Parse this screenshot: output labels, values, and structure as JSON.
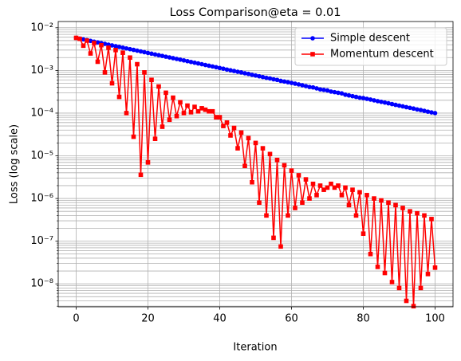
{
  "chart_data": {
    "type": "line",
    "title": "Loss Comparison@eta = 0.01",
    "xlabel": "Iteration",
    "ylabel": "Loss (log scale)",
    "yscale": "log",
    "grid": true,
    "legend": "upper right",
    "xlim": [
      -5,
      105
    ],
    "xticks": [
      0,
      20,
      40,
      60,
      80,
      100
    ],
    "ylim": [
      2.9e-09,
      0.014
    ],
    "yticks": [
      {
        "value": 1e-08,
        "label": "10⁻⁸"
      },
      {
        "value": 1e-07,
        "label": "10⁻⁷"
      },
      {
        "value": 1e-06,
        "label": "10⁻⁶"
      },
      {
        "value": 1e-05,
        "label": "10⁻⁵"
      },
      {
        "value": 0.0001,
        "label": "10⁻⁴"
      },
      {
        "value": 0.001,
        "label": "10⁻³"
      },
      {
        "value": 0.01,
        "label": "10⁻²"
      }
    ],
    "yminorticks": [
      3e-09,
      4e-09,
      5e-09,
      6e-09,
      7e-09,
      8e-09,
      9e-09,
      2e-08,
      3e-08,
      4e-08,
      5e-08,
      6e-08,
      7e-08,
      8e-08,
      9e-08,
      2e-07,
      3e-07,
      4e-07,
      5e-07,
      6e-07,
      7e-07,
      8e-07,
      9e-07,
      2e-06,
      3e-06,
      4e-06,
      5e-06,
      6e-06,
      7e-06,
      8e-06,
      9e-06,
      2e-05,
      3e-05,
      4e-05,
      5e-05,
      6e-05,
      7e-05,
      8e-05,
      9e-05,
      0.0002,
      0.0003,
      0.0004,
      0.0005,
      0.0006,
      0.0007,
      0.0008,
      0.0009,
      0.002,
      0.003,
      0.004,
      0.005,
      0.006,
      0.007,
      0.008,
      0.009
    ],
    "x": [
      0,
      1,
      2,
      3,
      4,
      5,
      6,
      7,
      8,
      9,
      10,
      11,
      12,
      13,
      14,
      15,
      16,
      17,
      18,
      19,
      20,
      21,
      22,
      23,
      24,
      25,
      26,
      27,
      28,
      29,
      30,
      31,
      32,
      33,
      34,
      35,
      36,
      37,
      38,
      39,
      40,
      41,
      42,
      43,
      44,
      45,
      46,
      47,
      48,
      49,
      50,
      51,
      52,
      53,
      54,
      55,
      56,
      57,
      58,
      59,
      60,
      61,
      62,
      63,
      64,
      65,
      66,
      67,
      68,
      69,
      70,
      71,
      72,
      73,
      74,
      75,
      76,
      77,
      78,
      79,
      80,
      81,
      82,
      83,
      84,
      85,
      86,
      87,
      88,
      89,
      90,
      91,
      92,
      93,
      94,
      95,
      96,
      97,
      98,
      99,
      100
    ],
    "series": [
      {
        "name": "Simple descent",
        "color": "#0000ff",
        "marker": "circle",
        "values": [
          0.0058,
          0.00557,
          0.00535,
          0.00513,
          0.00493,
          0.00473,
          0.00455,
          0.00437,
          0.00419,
          0.00402,
          0.00386,
          0.00371,
          0.00356,
          0.00342,
          0.00328,
          0.00315,
          0.00303,
          0.00291,
          0.00279,
          0.00268,
          0.00257,
          0.00247,
          0.00237,
          0.00228,
          0.00219,
          0.0021,
          0.00202,
          0.00194,
          0.00186,
          0.00179,
          0.00172,
          0.00165,
          0.00158,
          0.00152,
          0.00146,
          0.0014,
          0.00134,
          0.00129,
          0.00124,
          0.00119,
          0.00114,
          0.0011,
          0.00105,
          0.00101,
          0.00097,
          0.00093,
          0.0009,
          0.00086,
          0.00083,
          0.00079,
          0.00076,
          0.00073,
          0.0007,
          0.00067,
          0.00065,
          0.00062,
          0.0006,
          0.00057,
          0.00055,
          0.00053,
          0.00051,
          0.00049,
          0.00047,
          0.00045,
          0.00043,
          0.00041,
          0.0004,
          0.00038,
          0.00036,
          0.00035,
          0.00034,
          0.00032,
          0.00031,
          0.0003,
          0.00029,
          0.00027,
          0.00026,
          0.00025,
          0.00024,
          0.00023,
          0.000225,
          0.000216,
          0.000208,
          0.000199,
          0.000191,
          0.000184,
          0.000177,
          0.00017,
          0.000163,
          0.000156,
          0.00015,
          0.000144,
          0.000138,
          0.000133,
          0.000128,
          0.000122,
          0.000118,
          0.000113,
          0.000108,
          0.000104,
          0.0001
        ]
      },
      {
        "name": "Momentum descent",
        "color": "#ff0000",
        "marker": "square",
        "values": [
          0.0058,
          0.0055,
          0.0038,
          0.005,
          0.0025,
          0.0044,
          0.0016,
          0.0039,
          0.0009,
          0.0034,
          0.0005,
          0.003,
          0.00024,
          0.0026,
          0.0001,
          0.002,
          2.8e-05,
          0.0014,
          3.6e-06,
          0.0009,
          7e-06,
          0.0006,
          2.5e-05,
          0.00042,
          4.8e-05,
          0.0003,
          7e-05,
          0.00023,
          8.5e-05,
          0.00018,
          0.0001,
          0.00015,
          0.000105,
          0.00014,
          0.00011,
          0.00013,
          0.00012,
          0.00011,
          0.00011,
          8e-05,
          8e-05,
          5e-05,
          6e-05,
          3e-05,
          4.5e-05,
          1.5e-05,
          3.5e-05,
          5.8e-06,
          2.6e-05,
          2.4e-06,
          2e-05,
          8e-07,
          1.5e-05,
          4e-07,
          1.1e-05,
          1.2e-07,
          8e-06,
          7.5e-08,
          6e-06,
          4e-07,
          4.5e-06,
          6e-07,
          3.5e-06,
          8e-07,
          2.8e-06,
          1e-06,
          2.2e-06,
          1.2e-06,
          2e-06,
          1.6e-06,
          1.8e-06,
          2.2e-06,
          1.8e-06,
          2e-06,
          1.2e-06,
          1.8e-06,
          7e-07,
          1.6e-06,
          4e-07,
          1.4e-06,
          1.5e-07,
          1.2e-06,
          5e-08,
          1e-06,
          2.5e-08,
          9e-07,
          1.8e-08,
          8e-07,
          1.1e-08,
          7e-07,
          8e-09,
          6e-07,
          4e-09,
          5e-07,
          3e-09,
          4.5e-07,
          8e-09,
          4e-07,
          1.7e-08,
          3.3e-07,
          2.4e-08
        ]
      }
    ]
  }
}
